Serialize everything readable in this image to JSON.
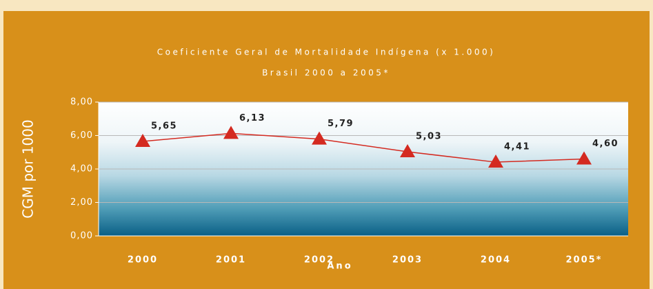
{
  "chart_data": {
    "type": "line",
    "title": "Coeficiente Geral de Mortalidade Indígena (x 1.000)",
    "subtitle": "Brasil 2000 a 2005*",
    "x_label": "Ano",
    "y_label": "CGM por 1000",
    "categories": [
      "2000",
      "2001",
      "2002",
      "2003",
      "2004",
      "2005*"
    ],
    "series": [
      {
        "name": "CGM",
        "color": "#d42a20",
        "values": [
          5.65,
          6.13,
          5.79,
          5.03,
          4.41,
          4.6
        ],
        "value_labels": [
          "5,65",
          "6,13",
          "5,79",
          "5,03",
          "4,41",
          "4,60"
        ]
      }
    ],
    "ylim": [
      0,
      8
    ],
    "yticks": [
      {
        "value": 0,
        "label": "0,00"
      },
      {
        "value": 2,
        "label": "2,00"
      },
      {
        "value": 4,
        "label": "4,00"
      },
      {
        "value": 6,
        "label": "6,00"
      },
      {
        "value": 8,
        "label": "8,00"
      }
    ],
    "grid": true
  }
}
